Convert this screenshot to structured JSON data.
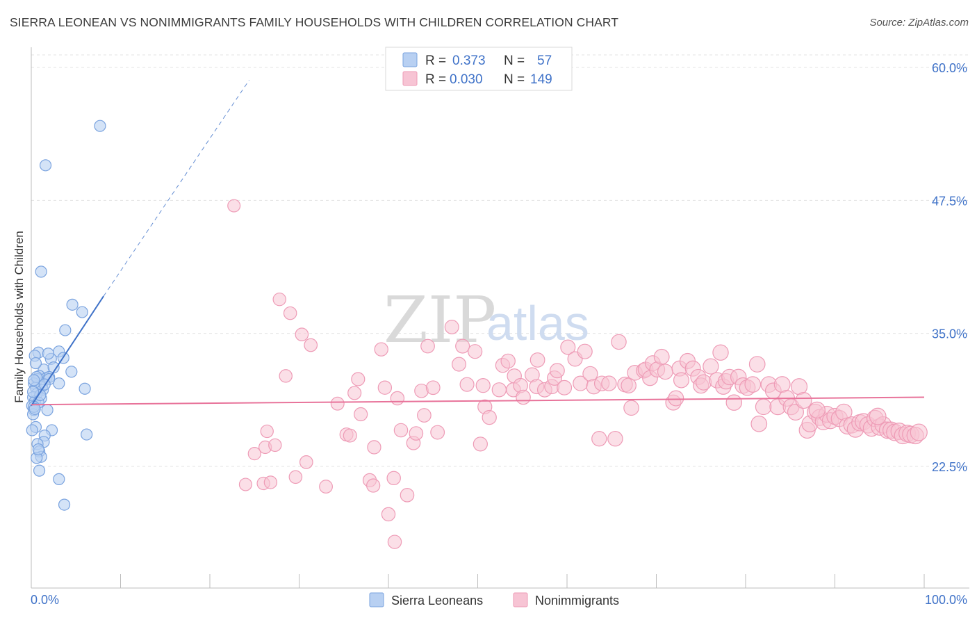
{
  "header": {
    "title": "SIERRA LEONEAN VS NONIMMIGRANTS FAMILY HOUSEHOLDS WITH CHILDREN CORRELATION CHART",
    "source": "Source: ZipAtlas.com"
  },
  "watermark": {
    "part1": "ZIP",
    "part2": "atlas"
  },
  "colors": {
    "blue": "#3f72c8",
    "blue_fill": "#b8d0f2",
    "blue_stroke": "#7aa3df",
    "pink": "#e8739a",
    "pink_fill": "#f7c4d4",
    "pink_stroke": "#ee9bb6",
    "grid": "#e3e3e3"
  },
  "legend": {
    "rows": [
      {
        "series": "Sierra Leoneans",
        "r_label": "R =",
        "r_value": "0.373",
        "n_label": "N =",
        "n_value": "57"
      },
      {
        "series": "Nonimmigrants",
        "r_label": "R =",
        "r_value": "0.030",
        "n_label": "N =",
        "n_value": "149"
      }
    ]
  },
  "chart_data": {
    "type": "scatter",
    "title": "SIERRA LEONEAN VS NONIMMIGRANTS FAMILY HOUSEHOLDS WITH CHILDREN CORRELATION CHART",
    "xlabel": "",
    "ylabel": "Family Households with Children",
    "xlim": [
      0,
      100
    ],
    "ylim": [
      10,
      61
    ],
    "x_tick_labels": [
      "0.0%",
      "100.0%"
    ],
    "y_ticks": [
      22.5,
      35.0,
      47.5,
      60.0
    ],
    "y_tick_labels": [
      "22.5%",
      "35.0%",
      "47.5%",
      "60.0%"
    ],
    "grid": true,
    "legend_position": "bottom-center",
    "series": [
      {
        "name": "Sierra Leoneans",
        "color": "#3f72c8",
        "R": 0.373,
        "N": 57,
        "trend": {
          "x": [
            0,
            8.1
          ],
          "y": [
            28.2,
            38.5
          ],
          "dashed_to": [
            24.4,
            58.8
          ]
        },
        "points": [
          [
            7.7,
            54.5
          ],
          [
            1.6,
            50.8
          ],
          [
            1.1,
            40.8
          ],
          [
            4.6,
            37.7
          ],
          [
            5.7,
            37.0
          ],
          [
            3.8,
            35.3
          ],
          [
            3.1,
            33.3
          ],
          [
            0.8,
            33.2
          ],
          [
            0.4,
            32.9
          ],
          [
            2.2,
            32.6
          ],
          [
            3.6,
            32.7
          ],
          [
            4.5,
            31.4
          ],
          [
            1.4,
            31.6
          ],
          [
            2.5,
            31.8
          ],
          [
            0.9,
            31.0
          ],
          [
            1.7,
            30.8
          ],
          [
            2.0,
            30.9
          ],
          [
            0.7,
            30.7
          ],
          [
            0.3,
            30.3
          ],
          [
            3.1,
            30.3
          ],
          [
            1.2,
            30.0
          ],
          [
            0.5,
            29.9
          ],
          [
            2.0,
            30.7
          ],
          [
            1.3,
            29.7
          ],
          [
            0.6,
            29.3
          ],
          [
            0.2,
            29.0
          ],
          [
            1.1,
            28.9
          ],
          [
            0.4,
            28.6
          ],
          [
            0.8,
            28.5
          ],
          [
            0.1,
            28.2
          ],
          [
            6.0,
            29.8
          ],
          [
            0.3,
            27.8
          ],
          [
            0.2,
            27.4
          ],
          [
            1.8,
            27.8
          ],
          [
            0.5,
            26.2
          ],
          [
            0.1,
            25.9
          ],
          [
            2.3,
            25.9
          ],
          [
            6.2,
            25.5
          ],
          [
            1.5,
            25.4
          ],
          [
            1.4,
            24.8
          ],
          [
            0.7,
            24.6
          ],
          [
            0.9,
            23.9
          ],
          [
            1.1,
            23.4
          ],
          [
            0.6,
            23.3
          ],
          [
            0.9,
            22.1
          ],
          [
            3.1,
            21.3
          ],
          [
            3.7,
            18.9
          ],
          [
            0.3,
            28.1
          ],
          [
            0.6,
            30.9
          ],
          [
            1.9,
            33.1
          ],
          [
            0.5,
            32.2
          ],
          [
            1.0,
            29.2
          ],
          [
            0.4,
            27.9
          ],
          [
            0.2,
            29.5
          ],
          [
            1.5,
            30.2
          ],
          [
            0.8,
            24.1
          ],
          [
            0.3,
            30.6
          ]
        ]
      },
      {
        "name": "Nonimmigrants",
        "color": "#e8739a",
        "R": 0.03,
        "N": 149,
        "trend": {
          "x": [
            0,
            100
          ],
          "y": [
            28.3,
            29.0
          ]
        },
        "points": [
          [
            22.7,
            47.0
          ],
          [
            27.8,
            38.2
          ],
          [
            29.0,
            36.9
          ],
          [
            30.3,
            34.9
          ],
          [
            31.3,
            33.9
          ],
          [
            28.5,
            31.0
          ],
          [
            24.0,
            20.8
          ],
          [
            26.4,
            25.8
          ],
          [
            26.2,
            24.3
          ],
          [
            27.3,
            24.5
          ],
          [
            25.0,
            23.7
          ],
          [
            26.0,
            20.9
          ],
          [
            26.8,
            21.0
          ],
          [
            29.6,
            21.5
          ],
          [
            30.8,
            22.9
          ],
          [
            33.0,
            20.6
          ],
          [
            34.3,
            28.4
          ],
          [
            35.3,
            25.5
          ],
          [
            35.7,
            25.4
          ],
          [
            36.2,
            29.4
          ],
          [
            36.6,
            30.7
          ],
          [
            36.9,
            27.4
          ],
          [
            37.9,
            21.2
          ],
          [
            38.3,
            20.7
          ],
          [
            38.4,
            24.3
          ],
          [
            39.2,
            33.5
          ],
          [
            39.6,
            29.9
          ],
          [
            40.0,
            18.0
          ],
          [
            40.6,
            21.4
          ],
          [
            40.7,
            15.4
          ],
          [
            41.0,
            28.9
          ],
          [
            41.4,
            25.9
          ],
          [
            42.1,
            19.8
          ],
          [
            42.8,
            24.7
          ],
          [
            43.1,
            25.6
          ],
          [
            43.7,
            29.6
          ],
          [
            44.0,
            27.3
          ],
          [
            44.4,
            33.8
          ],
          [
            45.0,
            29.9
          ],
          [
            45.5,
            25.7
          ],
          [
            47.1,
            35.6
          ],
          [
            47.9,
            32.1
          ],
          [
            48.3,
            33.8
          ],
          [
            48.8,
            30.2
          ],
          [
            49.7,
            33.3
          ],
          [
            50.6,
            30.1
          ],
          [
            50.3,
            24.6
          ],
          [
            50.8,
            28.1
          ],
          [
            51.3,
            27.1
          ],
          [
            52.4,
            29.7
          ],
          [
            52.8,
            32.0
          ],
          [
            53.4,
            32.4
          ],
          [
            54.0,
            29.7
          ],
          [
            54.1,
            31.0
          ],
          [
            54.8,
            30.1
          ],
          [
            55.1,
            29.0
          ],
          [
            56.1,
            31.1
          ],
          [
            56.6,
            30.0
          ],
          [
            56.7,
            32.5
          ],
          [
            57.5,
            29.7
          ],
          [
            58.3,
            30.0
          ],
          [
            58.6,
            30.8
          ],
          [
            58.9,
            31.5
          ],
          [
            59.7,
            29.9
          ],
          [
            60.1,
            33.7
          ],
          [
            60.9,
            32.6
          ],
          [
            61.5,
            30.3
          ],
          [
            62.0,
            33.3
          ],
          [
            62.6,
            31.2
          ],
          [
            63.0,
            30.0
          ],
          [
            63.6,
            25.1
          ],
          [
            63.9,
            30.3
          ],
          [
            64.7,
            30.3
          ],
          [
            65.4,
            25.1
          ],
          [
            65.8,
            34.2
          ],
          [
            66.5,
            30.2
          ],
          [
            66.9,
            30.1
          ],
          [
            67.2,
            28.0
          ],
          [
            67.6,
            31.3
          ],
          [
            68.6,
            31.5
          ],
          [
            68.8,
            31.6
          ],
          [
            69.3,
            30.8
          ],
          [
            69.6,
            32.2
          ],
          [
            70.1,
            31.6
          ],
          [
            70.6,
            32.8
          ],
          [
            71.0,
            31.4
          ],
          [
            71.9,
            28.5
          ],
          [
            72.2,
            28.9
          ],
          [
            72.6,
            31.7
          ],
          [
            72.8,
            30.6
          ],
          [
            73.5,
            32.4
          ],
          [
            74.1,
            31.7
          ],
          [
            74.7,
            30.9
          ],
          [
            75.0,
            30.1
          ],
          [
            75.3,
            30.4
          ],
          [
            76.1,
            31.9
          ],
          [
            76.8,
            30.6
          ],
          [
            77.2,
            33.2
          ],
          [
            77.5,
            30.0
          ],
          [
            77.8,
            30.5
          ],
          [
            78.2,
            30.9
          ],
          [
            78.7,
            28.5
          ],
          [
            79.2,
            30.9
          ],
          [
            79.7,
            30.1
          ],
          [
            80.2,
            29.9
          ],
          [
            80.8,
            30.2
          ],
          [
            81.5,
            26.5
          ],
          [
            81.3,
            32.1
          ],
          [
            82.0,
            28.1
          ],
          [
            82.6,
            30.2
          ],
          [
            83.1,
            29.6
          ],
          [
            83.6,
            28.1
          ],
          [
            84.1,
            30.2
          ],
          [
            84.6,
            28.9
          ],
          [
            85.1,
            28.1
          ],
          [
            85.6,
            27.6
          ],
          [
            86.0,
            30.0
          ],
          [
            86.5,
            28.7
          ],
          [
            86.9,
            25.9
          ],
          [
            87.2,
            26.5
          ],
          [
            87.8,
            27.6
          ],
          [
            88.3,
            27.1
          ],
          [
            88.7,
            26.7
          ],
          [
            89.1,
            27.4
          ],
          [
            89.5,
            26.8
          ],
          [
            90.0,
            27.2
          ],
          [
            90.5,
            27.0
          ],
          [
            91.0,
            27.6
          ],
          [
            91.4,
            26.3
          ],
          [
            91.9,
            26.4
          ],
          [
            92.3,
            26.0
          ],
          [
            92.8,
            26.6
          ],
          [
            93.2,
            26.7
          ],
          [
            93.7,
            26.4
          ],
          [
            94.1,
            26.1
          ],
          [
            94.5,
            27.0
          ],
          [
            95.0,
            26.2
          ],
          [
            95.4,
            26.4
          ],
          [
            95.9,
            25.9
          ],
          [
            96.3,
            25.9
          ],
          [
            96.7,
            25.7
          ],
          [
            97.2,
            25.8
          ],
          [
            97.6,
            25.4
          ],
          [
            98.1,
            25.6
          ],
          [
            98.5,
            25.5
          ],
          [
            99.0,
            25.4
          ],
          [
            99.4,
            25.7
          ],
          [
            94.8,
            27.2
          ],
          [
            88.0,
            27.8
          ]
        ]
      }
    ]
  }
}
